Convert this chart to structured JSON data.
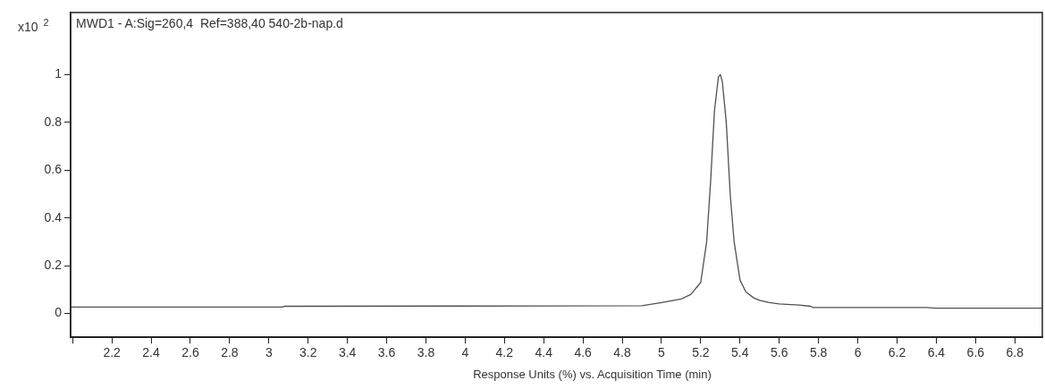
{
  "chart_data": {
    "type": "line",
    "title": "MWD1 - A:Sig=260,4  Ref=388,40 540-2b-nap.d",
    "xlabel": "Response Units (%) vs. Acquisition Time (min)",
    "ylabel": "x10$^{2}$",
    "series": [
      {
        "color": "#505050",
        "x": [
          1.99,
          3.07,
          3.08,
          4.9,
          5.0,
          5.1,
          5.15,
          5.2,
          5.23,
          5.25,
          5.27,
          5.29,
          5.3,
          5.31,
          5.33,
          5.35,
          5.37,
          5.4,
          5.43,
          5.47,
          5.5,
          5.55,
          5.6,
          5.7,
          5.76,
          5.77,
          6.35,
          6.4,
          6.94
        ],
        "values": [
          0.027,
          0.027,
          0.03,
          0.032,
          0.045,
          0.06,
          0.08,
          0.13,
          0.3,
          0.55,
          0.85,
          0.99,
          1.0,
          0.97,
          0.8,
          0.5,
          0.3,
          0.14,
          0.09,
          0.065,
          0.055,
          0.045,
          0.04,
          0.035,
          0.03,
          0.025,
          0.025,
          0.022,
          0.022
        ]
      }
    ],
    "xlim": [
      1.99,
      6.94
    ],
    "xticks": [
      {
        "value": 2,
        "label": null
      },
      2.2,
      2.4,
      2.6,
      2.8,
      3,
      3.2,
      3.4,
      3.6,
      3.8,
      4,
      4.2,
      4.4,
      4.6,
      4.8,
      5,
      5.2,
      5.4,
      5.6,
      5.8,
      6,
      6.2,
      6.4,
      6.6,
      6.8
    ],
    "ylim": [
      -0.1,
      1.26
    ],
    "yticks": [
      0,
      0.2,
      0.4,
      0.6,
      0.8,
      1
    ],
    "grid": false,
    "legend": false,
    "marker": "none",
    "line_style": "solid"
  }
}
